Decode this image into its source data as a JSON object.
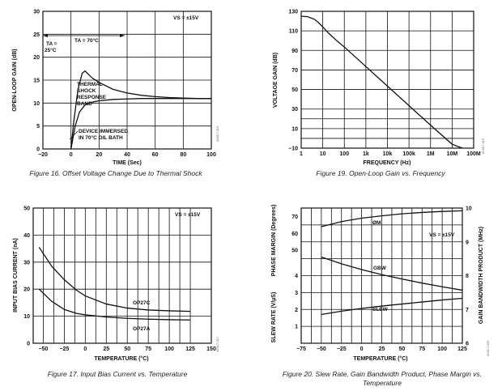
{
  "chart_data": [
    {
      "type": "line",
      "title": "",
      "caption": "Figure 16. Offset Voltage Change Due to Thermal Shock",
      "xlabel": "TIME (Sec)",
      "ylabel": "OPEN-LOOP GAIN (dB)",
      "xlim": [
        -20,
        100
      ],
      "ylim": [
        0,
        30
      ],
      "xticks": [
        "−20",
        "0",
        "20",
        "40",
        "60",
        "80",
        "100"
      ],
      "yticks": [
        "0",
        "5",
        "10",
        "15",
        "20",
        "25",
        "30"
      ],
      "annotations": {
        "vs": "VS = ±15V",
        "ta1": "TA =",
        "ta1b": "25°C",
        "ta2": "TA = 70°C",
        "shock1": "THERMAL",
        "shock2": "SHOCK",
        "shock3": "RESPONSE",
        "shock4": "BAND",
        "bath1": "DEVICE IMMERSED",
        "bath2": "IN 70°C OIL BATH"
      },
      "figure_id": "00317-016",
      "series": [
        {
          "name": "upper",
          "x": [
            0,
            2,
            5,
            8,
            10,
            15,
            20,
            30,
            40,
            50,
            60,
            70,
            80,
            90,
            100
          ],
          "y": [
            0,
            6,
            13,
            16.5,
            17,
            15.5,
            14.5,
            13,
            12.2,
            11.7,
            11.4,
            11.2,
            11.1,
            11.0,
            11.0
          ]
        },
        {
          "name": "lower",
          "x": [
            0,
            3,
            6,
            10,
            15,
            20,
            30,
            40,
            50,
            60,
            70,
            80,
            90,
            100
          ],
          "y": [
            0,
            5,
            8,
            9.6,
            10.2,
            10.5,
            10.8,
            10.9,
            11.0,
            11.0,
            11.0,
            11.0,
            11.0,
            11.0
          ]
        }
      ]
    },
    {
      "type": "line",
      "title": "",
      "caption": "Figure 19. Open-Loop Gain vs. Frequency",
      "xlabel": "FREQUENCY (Hz)",
      "ylabel": "VOLTAGE GAIN (dB)",
      "xscale": "log",
      "xlim": [
        1,
        100000000
      ],
      "ylim": [
        -10,
        130
      ],
      "xticks": [
        "1",
        "10",
        "100",
        "1k",
        "10k",
        "100k",
        "1M",
        "10M",
        "100M"
      ],
      "yticks": [
        "−10",
        "10",
        "30",
        "50",
        "70",
        "90",
        "110",
        "130"
      ],
      "figure_id": "00317-019",
      "series": [
        {
          "name": "gain",
          "x": [
            1,
            2,
            4,
            6,
            10,
            20,
            50,
            100,
            1000,
            10000,
            100000,
            1000000,
            10000000,
            30000000
          ],
          "y": [
            125,
            124.5,
            122,
            119,
            114,
            107,
            99,
            93.5,
            73.5,
            53.5,
            33.5,
            13.5,
            -6,
            -12
          ]
        }
      ]
    },
    {
      "type": "line",
      "title": "",
      "caption": "Figure 17. Input Bias Current vs. Temperature",
      "xlabel": "TEMPERATURE (°C)",
      "ylabel": "INPUT BIAS CURRENT (nA)",
      "xlim": [
        -62,
        150
      ],
      "ylim": [
        0,
        50
      ],
      "xticks": [
        "−50",
        "−25",
        "0",
        "25",
        "50",
        "75",
        "100",
        "125",
        "150"
      ],
      "yticks": [
        "0",
        "10",
        "20",
        "30",
        "40",
        "50"
      ],
      "annotations": {
        "vs": "VS = ±15V",
        "c": "OP27C",
        "a": "OP27A"
      },
      "figure_id": "00317-017",
      "series": [
        {
          "name": "OP27C",
          "x": [
            -55,
            -40,
            -25,
            -10,
            0,
            25,
            50,
            75,
            100,
            125
          ],
          "y": [
            35.5,
            28.5,
            23.5,
            19.5,
            17.5,
            14.5,
            13,
            12.3,
            12,
            11.8
          ]
        },
        {
          "name": "OP27A",
          "x": [
            -55,
            -40,
            -25,
            -10,
            0,
            25,
            50,
            75,
            100,
            125
          ],
          "y": [
            20,
            15.5,
            12.5,
            11,
            10.5,
            9.7,
            9.2,
            8.9,
            8.7,
            8.6
          ]
        }
      ]
    },
    {
      "type": "line",
      "title": "",
      "caption": "Figure 20. Slew Rate, Gain Bandwidth Product, Phase Margin vs.",
      "caption2": "Temperature",
      "xlabel": "TEMPERATURE (°C)",
      "ylabel_left": "SLEW RATE (V/µS)",
      "ylabel_left2": "PHASE MARGIN (Degrees)",
      "ylabel_right": "GAIN BANDWIDTH PRODUCT (MHz)",
      "xlim": [
        -75,
        125
      ],
      "xticks": [
        "−75",
        "−50",
        "−25",
        "0",
        "25",
        "50",
        "75",
        "100",
        "125"
      ],
      "yticks_pm": [
        "70",
        "60",
        "50"
      ],
      "yticks_sr": [
        "4",
        "3",
        "2",
        "1"
      ],
      "yticks_gbw": [
        "10",
        "9",
        "8",
        "7",
        "6"
      ],
      "annotations": {
        "vs": "VS = ±15V",
        "pm": "ØM",
        "gbw": "GBW",
        "slew": "SLEW"
      },
      "figure_id": "00317-020",
      "series": [
        {
          "name": "ØM",
          "x": [
            -50,
            -25,
            0,
            25,
            50,
            75,
            100,
            125
          ],
          "y": [
            9.45,
            9.6,
            9.7,
            9.77,
            9.83,
            9.87,
            9.9,
            9.92
          ]
        },
        {
          "name": "GBW",
          "x": [
            -50,
            -25,
            0,
            25,
            50,
            75,
            100,
            125
          ],
          "y": [
            8.55,
            8.35,
            8.18,
            8.03,
            7.9,
            7.78,
            7.67,
            7.57
          ]
        },
        {
          "name": "SLEW",
          "x": [
            -50,
            -25,
            0,
            25,
            50,
            75,
            100,
            125
          ],
          "y": [
            6.85,
            6.95,
            7.03,
            7.1,
            7.16,
            7.22,
            7.28,
            7.33
          ]
        }
      ]
    }
  ]
}
